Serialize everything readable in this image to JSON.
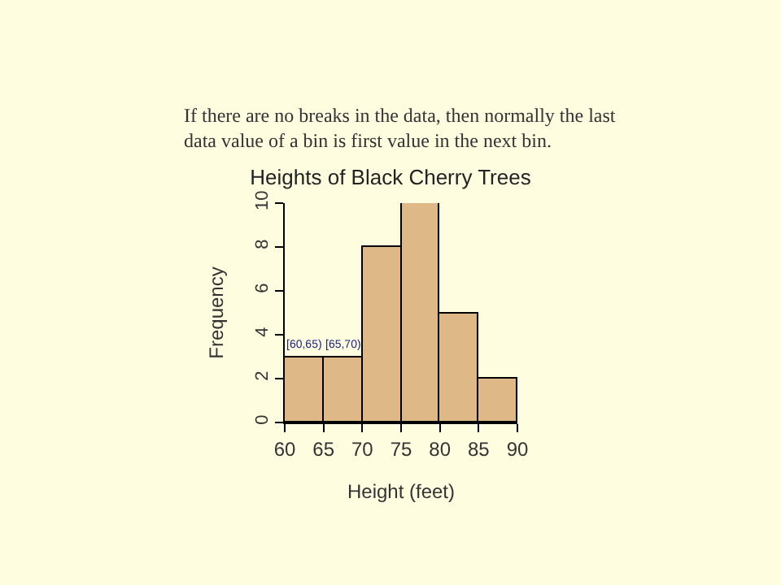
{
  "chart_data": {
    "type": "histogram",
    "title": "Heights of Black Cherry Trees",
    "subtitle": "If there are no breaks in the data, then normally the last\ndata value of a bin is first value in the next bin.",
    "xlabel": "Height (feet)",
    "ylabel": "Frequency",
    "bins": [
      60,
      65,
      70,
      75,
      80,
      85,
      90
    ],
    "values": [
      3,
      3,
      8,
      10,
      5,
      2
    ],
    "color": "#deb887",
    "xlim": [
      60,
      90
    ],
    "xticks": [
      60,
      65,
      70,
      75,
      80,
      85,
      90
    ],
    "ylim": [
      0,
      10
    ],
    "yticks": [
      0,
      2,
      4,
      6,
      8,
      10
    ],
    "grid": false,
    "legend": false,
    "annotations": [
      {
        "text": "[60,65)",
        "x": 62.5,
        "y": 3
      },
      {
        "text": "[65,70)",
        "x": 67.5,
        "y": 3
      }
    ]
  }
}
